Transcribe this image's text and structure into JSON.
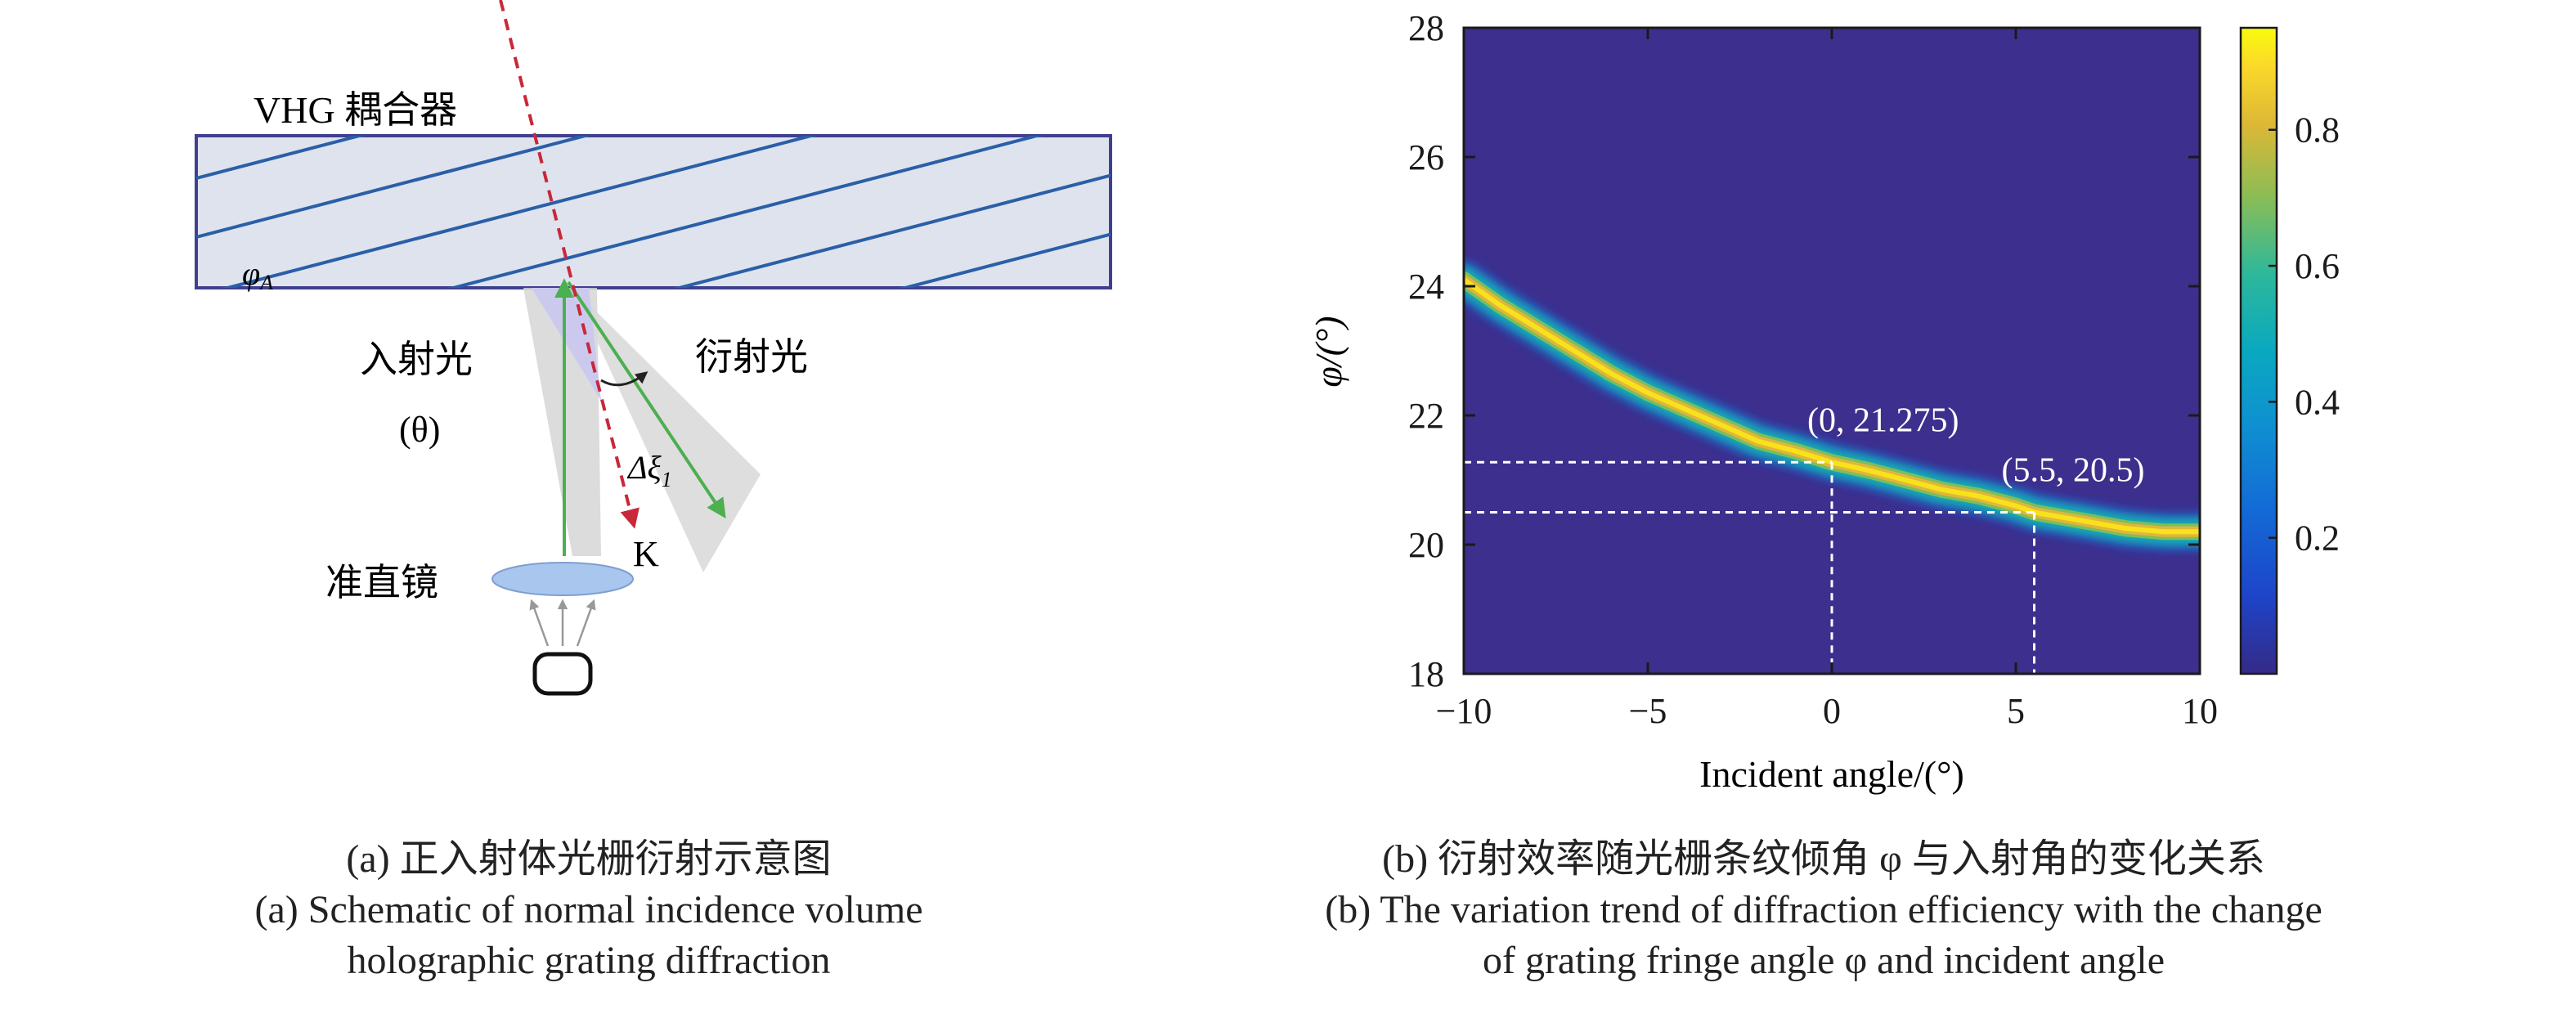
{
  "panel_a": {
    "coupler_label": "VHG 耦合器",
    "fringe_angle_label": "φ",
    "fringe_angle_sub": "A",
    "incident_label": "入射光",
    "incident_symbol": "(θ)",
    "diffracted_label": "衍射光",
    "delta_label": "Δξ",
    "delta_sub": "1",
    "k_label": "K",
    "collimator_label": "准直镜",
    "colors": {
      "slab_fill": "#dfe3ee",
      "slab_border": "#3f3f8f",
      "fringe": "#2a5fa8",
      "k_vector": "#c8283a",
      "rays": "#4caf50",
      "cone": "#d0d0d0",
      "lens": "#a9c6ee"
    }
  },
  "panel_b": {
    "chart_data": {
      "type": "heatmap",
      "xlabel": "Incident angle/(°)",
      "ylabel": "φ/(°)",
      "xlim": [
        -10,
        10
      ],
      "ylim": [
        18,
        28
      ],
      "xticks": [
        "−10",
        "−5",
        "0",
        "5",
        "10"
      ],
      "xtick_values": [
        -10,
        -5,
        0,
        5,
        10
      ],
      "yticks": [
        "18",
        "20",
        "22",
        "24",
        "26",
        "28"
      ],
      "ytick_values": [
        18,
        20,
        22,
        24,
        26,
        28
      ],
      "colorbar_ticks": [
        "0.2",
        "0.4",
        "0.6",
        "0.8"
      ],
      "colorbar_tick_values": [
        0.2,
        0.4,
        0.6,
        0.8
      ],
      "colorbar_range": [
        0.0,
        0.95
      ],
      "colormap": "parula",
      "background_color": "#3d2f8d",
      "ridge": {
        "description_values": "peak diffraction efficiency ridge",
        "x": [
          -10,
          -9,
          -8,
          -7,
          -6,
          -5,
          -4,
          -3,
          -2,
          -1,
          0,
          1,
          2,
          3,
          4,
          5,
          5.5,
          6,
          7,
          8,
          9,
          10
        ],
        "y": [
          24.1,
          23.7,
          23.35,
          23.0,
          22.65,
          22.35,
          22.1,
          21.85,
          21.6,
          21.45,
          21.275,
          21.15,
          21.0,
          20.85,
          20.75,
          20.6,
          20.5,
          20.45,
          20.35,
          20.25,
          20.2,
          20.2
        ],
        "peak": 0.95
      },
      "annotations": [
        {
          "label": "(0, 21.275)",
          "x": 0,
          "y": 21.275
        },
        {
          "label": "(5.5, 20.5)",
          "x": 5.5,
          "y": 20.5
        }
      ]
    }
  },
  "captions": {
    "a_line1": "(a) 正入射体光栅衍射示意图",
    "a_line2": "(a) Schematic of normal incidence volume",
    "a_line3": "holographic grating diffraction",
    "b_line1": "(b) 衍射效率随光栅条纹倾角 φ 与入射角的变化关系",
    "b_line2": "(b) The variation trend of diffraction efficiency with the change",
    "b_line3": "of grating fringe angle φ and incident angle"
  }
}
